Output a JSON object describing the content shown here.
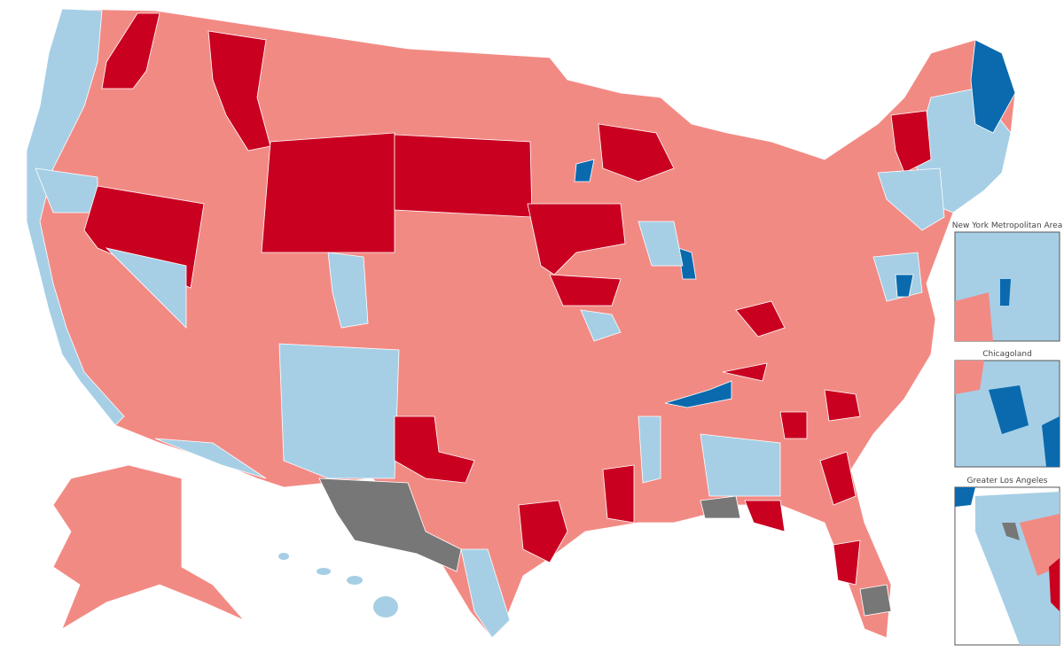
{
  "insets": [
    {
      "label": "New York Metropolitan Area"
    },
    {
      "label": "Chicagoland"
    },
    {
      "label": "Greater Los Angeles"
    }
  ]
}
